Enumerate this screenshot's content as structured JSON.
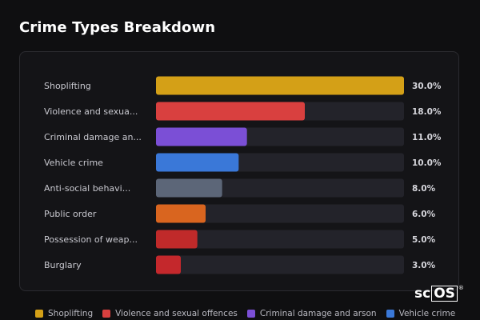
{
  "page": {
    "title": "Crime Types Breakdown",
    "logo_text": "scOS"
  },
  "chart_data": {
    "type": "bar",
    "orientation": "horizontal",
    "title": "Crime Types Breakdown",
    "categories": [
      "Shoplifting",
      "Violence and sexua...",
      "Criminal damage an...",
      "Vehicle crime",
      "Anti-social behavi...",
      "Public order",
      "Possession of weap...",
      "Burglary"
    ],
    "values": [
      30.0,
      18.0,
      11.0,
      10.0,
      8.0,
      6.0,
      5.0,
      3.0
    ],
    "value_labels": [
      "30.0%",
      "18.0%",
      "11.0%",
      "10.0%",
      "8.0%",
      "6.0%",
      "5.0%",
      "3.0%"
    ],
    "colors": [
      "#d4a017",
      "#d9403f",
      "#7b4fd6",
      "#3a78d8",
      "#5c6678",
      "#d9651f",
      "#c02a2a",
      "#c4282c"
    ],
    "xlim": [
      0,
      30
    ],
    "grid": false,
    "legend": {
      "position": "bottom",
      "entries": [
        {
          "label": "Shoplifting",
          "color": "#d4a017"
        },
        {
          "label": "Violence and sexual offences",
          "color": "#d9403f"
        },
        {
          "label": "Criminal damage and arson",
          "color": "#7b4fd6"
        },
        {
          "label": "Vehicle crime",
          "color": "#3a78d8"
        }
      ]
    }
  }
}
